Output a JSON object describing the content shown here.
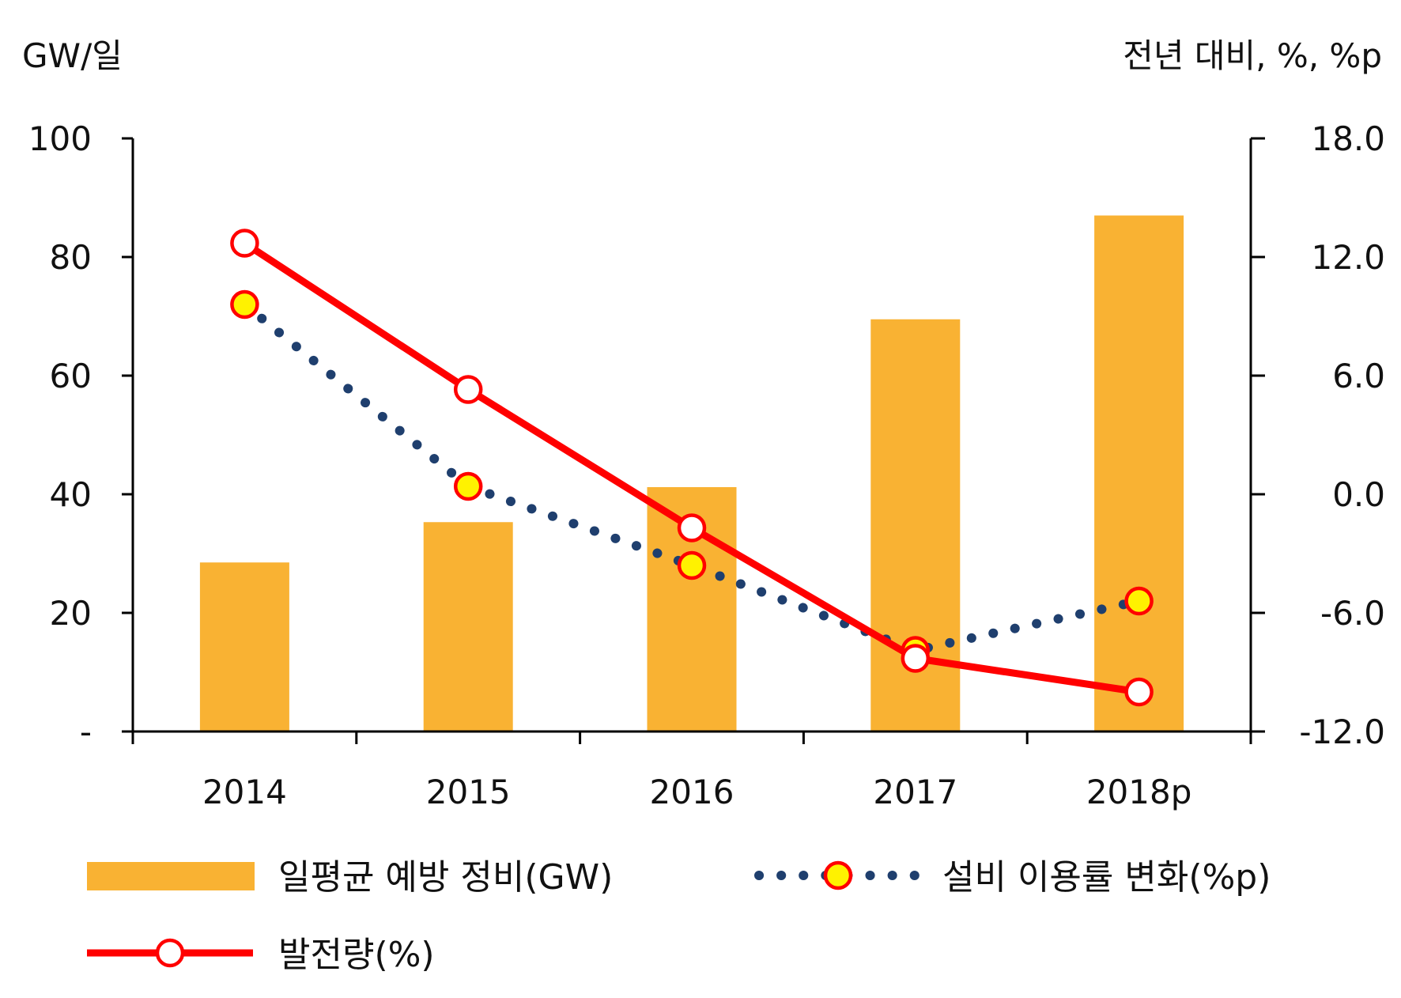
{
  "chart_data": {
    "type": "bar",
    "categories": [
      "2014",
      "2015",
      "2016",
      "2017",
      "2018p"
    ],
    "left_axis": {
      "unit_label": "GW/일",
      "ylim": [
        0,
        100
      ],
      "ticks": [
        {
          "value": 0,
          "label": "-"
        },
        {
          "value": 20,
          "label": "20"
        },
        {
          "value": 40,
          "label": "40"
        },
        {
          "value": 60,
          "label": "60"
        },
        {
          "value": 80,
          "label": "80"
        },
        {
          "value": 100,
          "label": "100"
        }
      ]
    },
    "right_axis": {
      "unit_label": "전년 대비, %, %p",
      "ylim": [
        -12,
        18
      ],
      "ticks": [
        {
          "value": -12,
          "label": "-12.0"
        },
        {
          "value": -6,
          "label": "-6.0"
        },
        {
          "value": 0,
          "label": "0.0"
        },
        {
          "value": 6,
          "label": "6.0"
        },
        {
          "value": 12,
          "label": "12.0"
        },
        {
          "value": 18,
          "label": "18.0"
        }
      ]
    },
    "series": [
      {
        "name": "일평균 예방 정비(GW)",
        "type": "bar",
        "axis": "left",
        "color": "#F9B233",
        "values": [
          28.5,
          35.3,
          41.2,
          69.5,
          87.0
        ]
      },
      {
        "name": "설비 이용률 변화(%p)",
        "type": "line",
        "style": "dotted",
        "axis": "right",
        "line_color": "#1F3F6E",
        "marker_fill": "#FFF200",
        "marker_stroke": "#FF0000",
        "values": [
          9.6,
          0.4,
          -3.6,
          -7.9,
          -5.4
        ]
      },
      {
        "name": "발전량(%)",
        "type": "line",
        "style": "solid",
        "axis": "right",
        "line_color": "#FF0000",
        "marker_fill": "#FFFFFF",
        "marker_stroke": "#FF0000",
        "values": [
          12.7,
          5.3,
          -1.7,
          -8.3,
          -10.0
        ]
      }
    ],
    "legend_placement": "bottom",
    "grid": false
  }
}
